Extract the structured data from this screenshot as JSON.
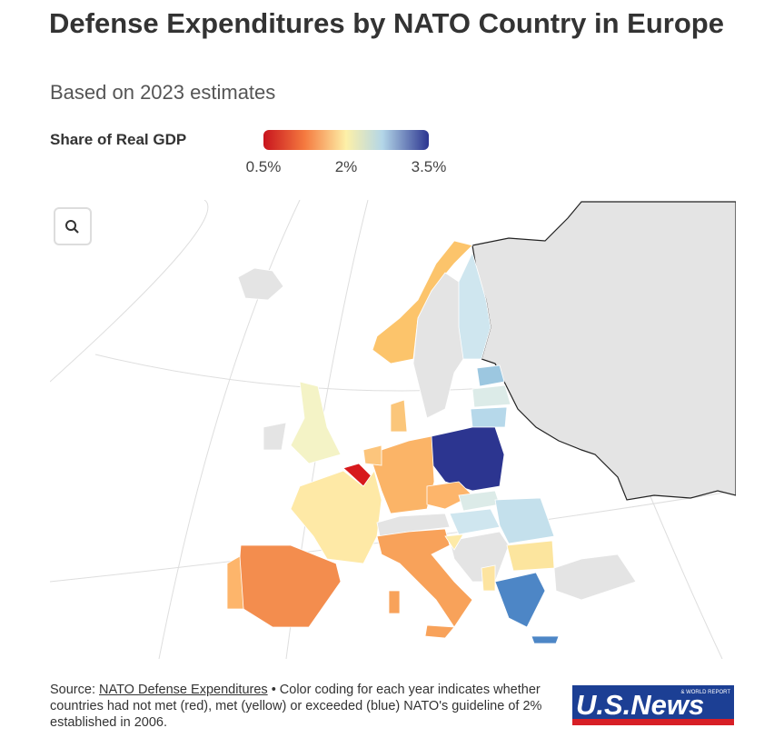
{
  "header": {
    "title": "Defense Expenditures by NATO Country in Europe",
    "subtitle": "Based on 2023 estimates"
  },
  "legend": {
    "title": "Share of Real GDP",
    "range": [
      0.5,
      3.5
    ],
    "ticks": [
      {
        "value": 0.5,
        "label": "0.5%"
      },
      {
        "value": 2,
        "label": "2%"
      },
      {
        "value": 3.5,
        "label": "3.5%"
      }
    ]
  },
  "footer": {
    "source_prefix": "Source:",
    "source_link": "NATO Defense Expenditures",
    "note": "• Color coding for each year indicates whether countries had not met (red), met (yellow) or exceeded (blue) NATO's guideline of 2% established in 2006."
  },
  "logo": {
    "name": "U.S.News",
    "tagline": "& WORLD REPORT"
  }
}
